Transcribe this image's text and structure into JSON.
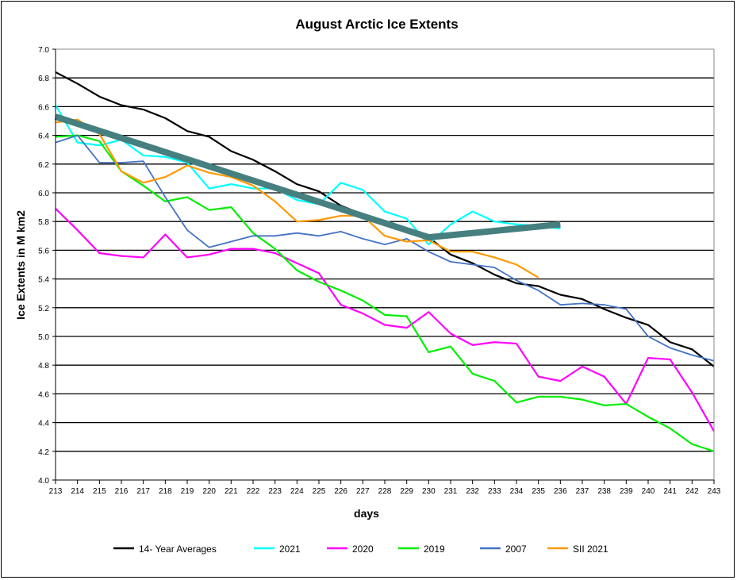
{
  "chart_data": {
    "type": "line",
    "title": "August Arctic Ice Extents",
    "xlabel": "days",
    "ylabel": "Ice Extents in M km2",
    "xlim": [
      213,
      243
    ],
    "ylim": [
      4.0,
      7.0
    ],
    "yticks": [
      "4.0",
      "4.2",
      "4.4",
      "4.6",
      "4.8",
      "5.0",
      "5.2",
      "5.4",
      "5.6",
      "5.8",
      "6.0",
      "6.2",
      "6.4",
      "6.6",
      "6.8",
      "7.0"
    ],
    "xticks": [
      "213",
      "214",
      "215",
      "216",
      "217",
      "218",
      "219",
      "220",
      "221",
      "222",
      "223",
      "224",
      "225",
      "226",
      "227",
      "228",
      "229",
      "230",
      "231",
      "232",
      "233",
      "234",
      "235",
      "236",
      "237",
      "238",
      "239",
      "240",
      "241",
      "242",
      "243"
    ],
    "grid": "horizontal",
    "legend": "bottom",
    "series": [
      {
        "name": "14- Year Averages",
        "color": "#000000",
        "values": [
          6.84,
          6.76,
          6.67,
          6.61,
          6.58,
          6.52,
          6.43,
          6.39,
          6.29,
          6.23,
          6.15,
          6.06,
          6.01,
          5.91,
          5.85,
          5.79,
          5.75,
          5.69,
          5.57,
          5.51,
          5.43,
          5.37,
          5.35,
          5.29,
          5.26,
          5.19,
          5.13,
          5.08,
          4.96,
          4.91,
          4.79
        ]
      },
      {
        "name": "2021",
        "color": "#00ffff",
        "values": [
          6.61,
          6.35,
          6.33,
          6.37,
          6.26,
          6.25,
          6.21,
          6.03,
          6.06,
          6.03,
          6.03,
          5.95,
          5.92,
          6.07,
          6.02,
          5.87,
          5.82,
          5.64,
          5.78,
          5.87,
          5.8,
          5.78,
          5.77,
          5.75
        ]
      },
      {
        "name": "2020",
        "color": "#ff00ff",
        "values": [
          5.89,
          5.74,
          5.58,
          5.56,
          5.55,
          5.71,
          5.55,
          5.57,
          5.61,
          5.61,
          5.58,
          5.51,
          5.44,
          5.22,
          5.16,
          5.08,
          5.06,
          5.17,
          5.02,
          4.94,
          4.96,
          4.95,
          4.72,
          4.69,
          4.79,
          4.72,
          4.53,
          4.85,
          4.84,
          4.61,
          4.34
        ]
      },
      {
        "name": "2019",
        "color": "#00ee00",
        "values": [
          6.39,
          6.4,
          6.36,
          6.15,
          6.05,
          5.94,
          5.97,
          5.88,
          5.9,
          5.72,
          5.61,
          5.46,
          5.38,
          5.32,
          5.25,
          5.15,
          5.14,
          4.89,
          4.93,
          4.74,
          4.69,
          4.54,
          4.58,
          4.58,
          4.56,
          4.52,
          4.53,
          4.44,
          4.36,
          4.25,
          4.2
        ]
      },
      {
        "name": "2007",
        "color": "#4472c4",
        "values": [
          6.35,
          6.4,
          6.21,
          6.21,
          6.22,
          5.97,
          5.74,
          5.62,
          5.66,
          5.7,
          5.7,
          5.72,
          5.7,
          5.73,
          5.68,
          5.64,
          5.68,
          5.59,
          5.52,
          5.5,
          5.48,
          5.39,
          5.32,
          5.22,
          5.23,
          5.22,
          5.19,
          5.0,
          4.92,
          4.87,
          4.83
        ]
      },
      {
        "name": "SII 2021",
        "color": "#ff9900",
        "values": [
          6.49,
          6.51,
          6.41,
          6.15,
          6.07,
          6.11,
          6.19,
          6.14,
          6.11,
          6.05,
          5.94,
          5.8,
          5.81,
          5.84,
          5.84,
          5.7,
          5.66,
          5.67,
          5.59,
          5.59,
          5.55,
          5.5,
          5.41
        ]
      }
    ],
    "trend": {
      "color": "#467f7f",
      "points": [
        [
          213,
          6.53
        ],
        [
          230,
          5.69
        ],
        [
          236,
          5.78
        ]
      ]
    }
  }
}
